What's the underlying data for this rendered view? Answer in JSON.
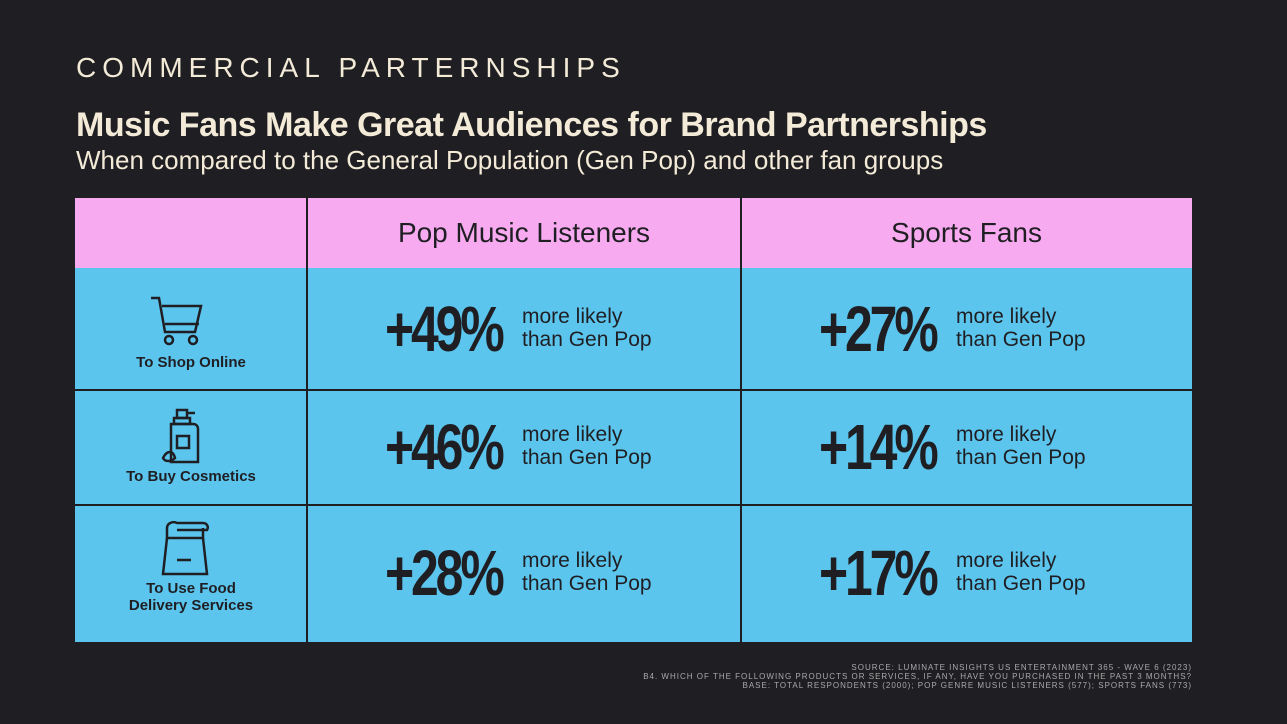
{
  "header": {
    "eyebrow": "COMMERCIAL PARTERNSHIPS",
    "title": "Music Fans Make Great Audiences for Brand Partnerships",
    "subtitle": "When compared to the General Population (Gen Pop) and other fan groups"
  },
  "table": {
    "columns": [
      "Pop Music Listeners",
      "Sports Fans"
    ],
    "rows": [
      {
        "label": [
          "To Shop Online"
        ],
        "cells": [
          {
            "value": "+49%",
            "note": [
              "more likely",
              "than Gen Pop"
            ]
          },
          {
            "value": "+27%",
            "note": [
              "more likely",
              "than Gen Pop"
            ]
          }
        ]
      },
      {
        "label": [
          "To Buy Cosmetics"
        ],
        "cells": [
          {
            "value": "+46%",
            "note": [
              "more likely",
              "than Gen Pop"
            ]
          },
          {
            "value": "+14%",
            "note": [
              "more likely",
              "than Gen Pop"
            ]
          }
        ]
      },
      {
        "label": [
          "To Use Food",
          "Delivery Services"
        ],
        "cells": [
          {
            "value": "+28%",
            "note": [
              "more likely",
              "than Gen Pop"
            ]
          },
          {
            "value": "+17%",
            "note": [
              "more likely",
              "than Gen Pop"
            ]
          }
        ]
      }
    ]
  },
  "footer": {
    "lines": [
      "SOURCE: LUMINATE INSIGHTS US ENTERTAINMENT 365 - WAVE 6 (2023)",
      "B4. WHICH OF THE FOLLOWING PRODUCTS OR SERVICES, IF ANY, HAVE YOU PURCHASED IN THE PAST 3 MONTHS?",
      "BASE: TOTAL RESPONDENTS (2000); POP GENRE MUSIC LISTENERS (577); SPORTS FANS (773)"
    ]
  }
}
